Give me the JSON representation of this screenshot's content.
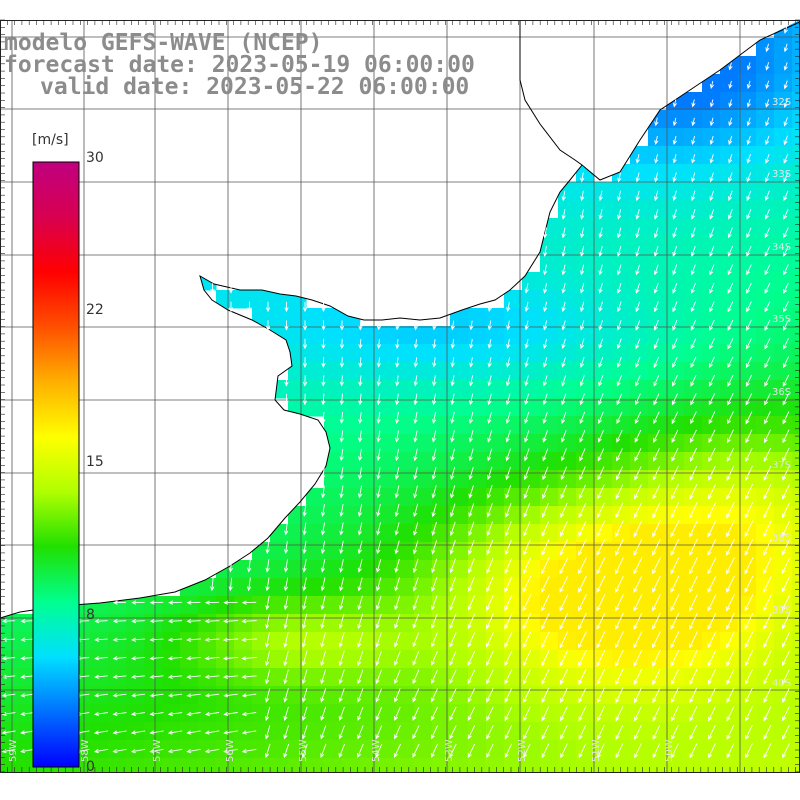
{
  "titles": {
    "model": "modelo GEFS-WAVE (NCEP)",
    "forecast": "forecast date: 2023-05-19 06:00:00",
    "valid": "valid date: 2023-05-22 06:00:00"
  },
  "colorbar": {
    "unit": "[m/s]",
    "ticks": [
      {
        "value": 30,
        "label": "30"
      },
      {
        "value": 22,
        "label": "22"
      },
      {
        "value": 15,
        "label": "15"
      },
      {
        "value": 8,
        "label": "8"
      },
      {
        "value": 0,
        "label": "0"
      }
    ],
    "range": [
      0,
      30
    ],
    "colors": [
      "#0000ff",
      "#0070ff",
      "#00e0ff",
      "#00ff90",
      "#20e000",
      "#b0ff00",
      "#ffff00",
      "#ffb000",
      "#ff5000",
      "#ff0000",
      "#d80050",
      "#c00080"
    ]
  },
  "lat_labels": [
    "32S",
    "33S",
    "34S",
    "35S",
    "36S",
    "37S",
    "38S",
    "39S",
    "40S"
  ],
  "lon_labels": [
    "59W",
    "58W",
    "57W",
    "56W",
    "55W",
    "54W",
    "53W",
    "52W",
    "51W",
    "50W"
  ],
  "colors": {
    "land": "#ffffff",
    "coast": "#000000",
    "grid": "#555555",
    "arrow": "#ffffff",
    "title": "#8c8c8c"
  },
  "wind_field": {
    "unit": "m/s",
    "description_hidden": false
  }
}
